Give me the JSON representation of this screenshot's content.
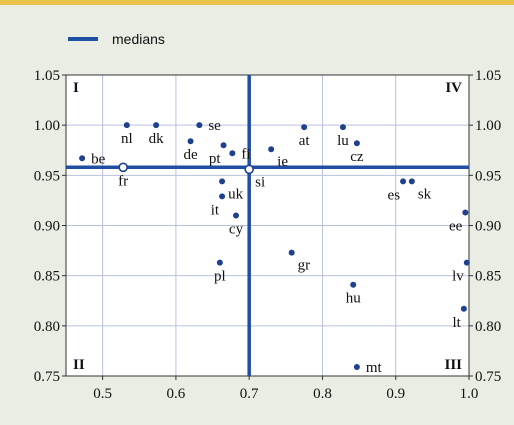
{
  "chart_data": {
    "type": "scatter",
    "title": "",
    "xlabel": "",
    "ylabel": "",
    "xlim": [
      0.45,
      1.0
    ],
    "ylim": [
      0.75,
      1.05
    ],
    "x_ticks": [
      "0.5",
      "0.6",
      "0.7",
      "0.8",
      "0.9",
      "1.0"
    ],
    "y_ticks": [
      "0.75",
      "0.80",
      "0.85",
      "0.90",
      "0.95",
      "1.00",
      "1.05"
    ],
    "grid": true,
    "legend": {
      "label": "medians",
      "placement": "top-left"
    },
    "medians": {
      "x": 0.7,
      "y": 0.958
    },
    "quadrants": {
      "top_left": "I",
      "top_right": "IV",
      "bottom_left": "II",
      "bottom_right": "III"
    },
    "colors": {
      "median_line": "#1f4fa3",
      "points": "#1f3f8f",
      "grid": "#b9c0de",
      "top_bar": "#e8c24a",
      "background": "#e9ede4"
    },
    "points": [
      {
        "label": "be",
        "x": 0.472,
        "y": 0.967,
        "label_pos": "right"
      },
      {
        "label": "fr",
        "x": 0.528,
        "y": 0.958,
        "label_pos": "below"
      },
      {
        "label": "nl",
        "x": 0.533,
        "y": 1.0,
        "label_pos": "below"
      },
      {
        "label": "dk",
        "x": 0.573,
        "y": 1.0,
        "label_pos": "below"
      },
      {
        "label": "se",
        "x": 0.632,
        "y": 1.0,
        "label_pos": "right"
      },
      {
        "label": "de",
        "x": 0.62,
        "y": 0.984,
        "label_pos": "below"
      },
      {
        "label": "pt",
        "x": 0.665,
        "y": 0.98,
        "label_pos": "belowleft"
      },
      {
        "label": "fi",
        "x": 0.677,
        "y": 0.972,
        "label_pos": "right"
      },
      {
        "label": "si",
        "x": 0.7,
        "y": 0.956,
        "label_pos": "belowright"
      },
      {
        "label": "ie",
        "x": 0.73,
        "y": 0.976,
        "label_pos": "belowright"
      },
      {
        "label": "at",
        "x": 0.775,
        "y": 0.998,
        "label_pos": "below"
      },
      {
        "label": "lu",
        "x": 0.828,
        "y": 0.998,
        "label_pos": "below"
      },
      {
        "label": "cz",
        "x": 0.847,
        "y": 0.982,
        "label_pos": "below"
      },
      {
        "label": "uk",
        "x": 0.663,
        "y": 0.944,
        "label_pos": "belowright"
      },
      {
        "label": "it",
        "x": 0.663,
        "y": 0.929,
        "label_pos": "belowleft"
      },
      {
        "label": "cy",
        "x": 0.682,
        "y": 0.91,
        "label_pos": "below"
      },
      {
        "label": "es",
        "x": 0.91,
        "y": 0.944,
        "label_pos": "belowleft"
      },
      {
        "label": "sk",
        "x": 0.922,
        "y": 0.944,
        "label_pos": "belowright"
      },
      {
        "label": "ee",
        "x": 0.995,
        "y": 0.913,
        "label_pos": "belowleft"
      },
      {
        "label": "pl",
        "x": 0.66,
        "y": 0.863,
        "label_pos": "below"
      },
      {
        "label": "gr",
        "x": 0.758,
        "y": 0.873,
        "label_pos": "belowright"
      },
      {
        "label": "hu",
        "x": 0.842,
        "y": 0.841,
        "label_pos": "below"
      },
      {
        "label": "lv",
        "x": 0.997,
        "y": 0.863,
        "label_pos": "belowleft"
      },
      {
        "label": "lt",
        "x": 0.993,
        "y": 0.817,
        "label_pos": "belowleft"
      },
      {
        "label": "mt",
        "x": 0.847,
        "y": 0.759,
        "label_pos": "right"
      }
    ]
  }
}
